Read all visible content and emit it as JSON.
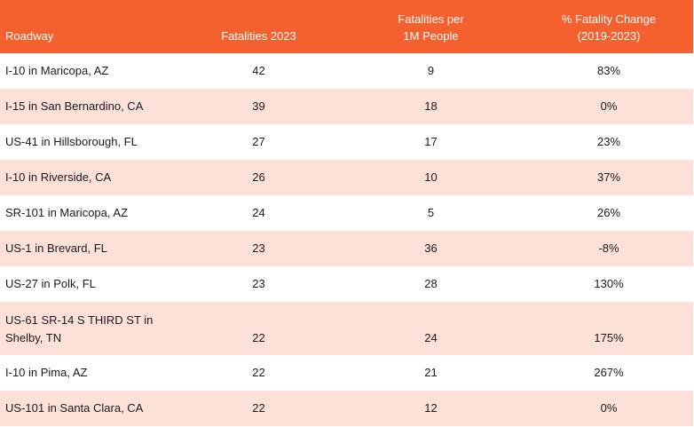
{
  "table": {
    "headers": {
      "roadway": "Roadway",
      "fatalities_2023": "Fatalities 2023",
      "per_million_line1": "Fatalities per",
      "per_million_line2": "1M People",
      "change_line1": "% Fatality Change",
      "change_line2": "(2019-2023)"
    },
    "rows": [
      {
        "roadway": "I-10 in Maricopa, AZ",
        "fatalities": "42",
        "per_million": "9",
        "change": "83%"
      },
      {
        "roadway": "I-15 in San Bernardino, CA",
        "fatalities": "39",
        "per_million": "18",
        "change": "0%"
      },
      {
        "roadway": "US-41 in Hillsborough, FL",
        "fatalities": "27",
        "per_million": "17",
        "change": "23%"
      },
      {
        "roadway": "I-10 in Riverside, CA",
        "fatalities": "26",
        "per_million": "10",
        "change": "37%"
      },
      {
        "roadway": "SR-101 in Maricopa, AZ",
        "fatalities": "24",
        "per_million": "5",
        "change": "26%"
      },
      {
        "roadway": "US-1 in Brevard, FL",
        "fatalities": "23",
        "per_million": "36",
        "change": "-8%"
      },
      {
        "roadway": "US-27 in Polk, FL",
        "fatalities": "23",
        "per_million": "28",
        "change": "130%"
      },
      {
        "roadway": "US-61 SR-14 S THIRD ST in Shelby, TN",
        "fatalities": "22",
        "per_million": "24",
        "change": "175%"
      },
      {
        "roadway": "I-10 in Pima, AZ",
        "fatalities": "22",
        "per_million": "21",
        "change": "267%"
      },
      {
        "roadway": "US-101 in Santa Clara, CA",
        "fatalities": "22",
        "per_million": "12",
        "change": "0%"
      }
    ]
  },
  "colors": {
    "header_bg": "#f4612e",
    "header_text": "#ffffff",
    "row_alt_bg": "#fde1d8",
    "row_bg": "#ffffff"
  }
}
